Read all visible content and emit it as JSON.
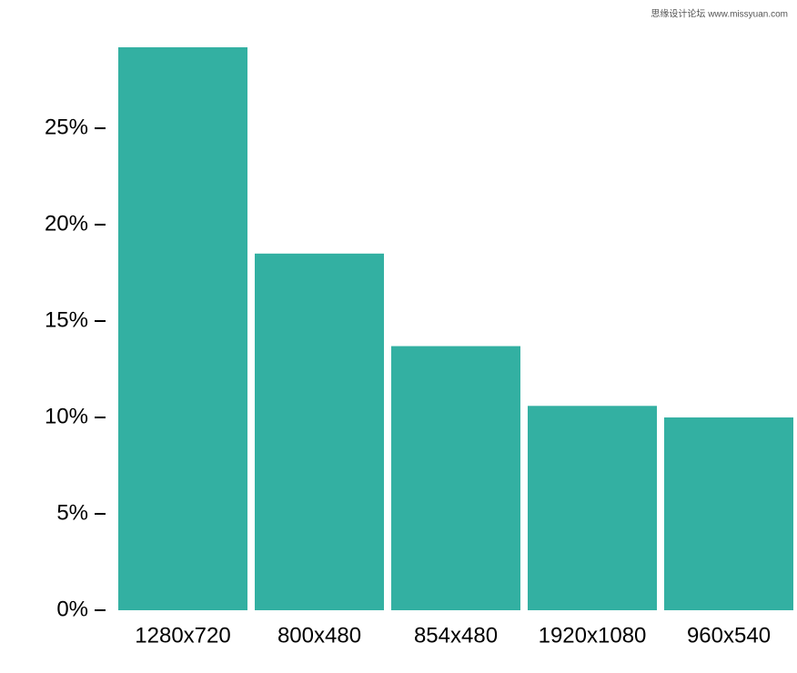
{
  "chart_data": {
    "type": "bar",
    "watermark": "思缘设计论坛 www.missyuan.com",
    "categories": [
      "1280x720",
      "800x480",
      "854x480",
      "1920x1080",
      "960x540"
    ],
    "values": [
      29.2,
      18.5,
      13.7,
      10.6,
      10.0
    ],
    "color": "#33b0a2",
    "ylim": [
      0,
      29.2
    ],
    "yticks": [
      {
        "value": 0,
        "label": "0%"
      },
      {
        "value": 5,
        "label": "5%"
      },
      {
        "value": 10,
        "label": "10%"
      },
      {
        "value": 15,
        "label": "15%"
      },
      {
        "value": 20,
        "label": "20%"
      },
      {
        "value": 25,
        "label": "25%"
      }
    ],
    "grid": false
  }
}
